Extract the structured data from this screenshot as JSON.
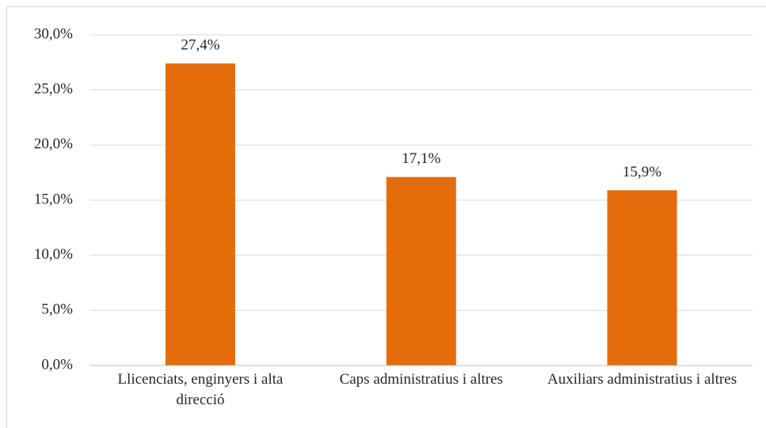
{
  "chart_data": {
    "type": "bar",
    "categories": [
      "Llicenciats, enginyers i alta direcció",
      "Caps administratius i altres",
      "Auxiliars administratius i altres"
    ],
    "values": [
      27.4,
      17.1,
      15.9
    ],
    "value_labels": [
      "27,4%",
      "17,1%",
      "15,9%"
    ],
    "color": "#e46c0a",
    "ylim": [
      0,
      30
    ],
    "yticks": [
      {
        "value": 0,
        "label": "0,0%"
      },
      {
        "value": 5,
        "label": "5,0%"
      },
      {
        "value": 10,
        "label": "10,0%"
      },
      {
        "value": 15,
        "label": "15,0%"
      },
      {
        "value": 20,
        "label": "20,0%"
      },
      {
        "value": 25,
        "label": "25,0%"
      },
      {
        "value": 30,
        "label": "30,0%"
      }
    ],
    "grid": true
  }
}
